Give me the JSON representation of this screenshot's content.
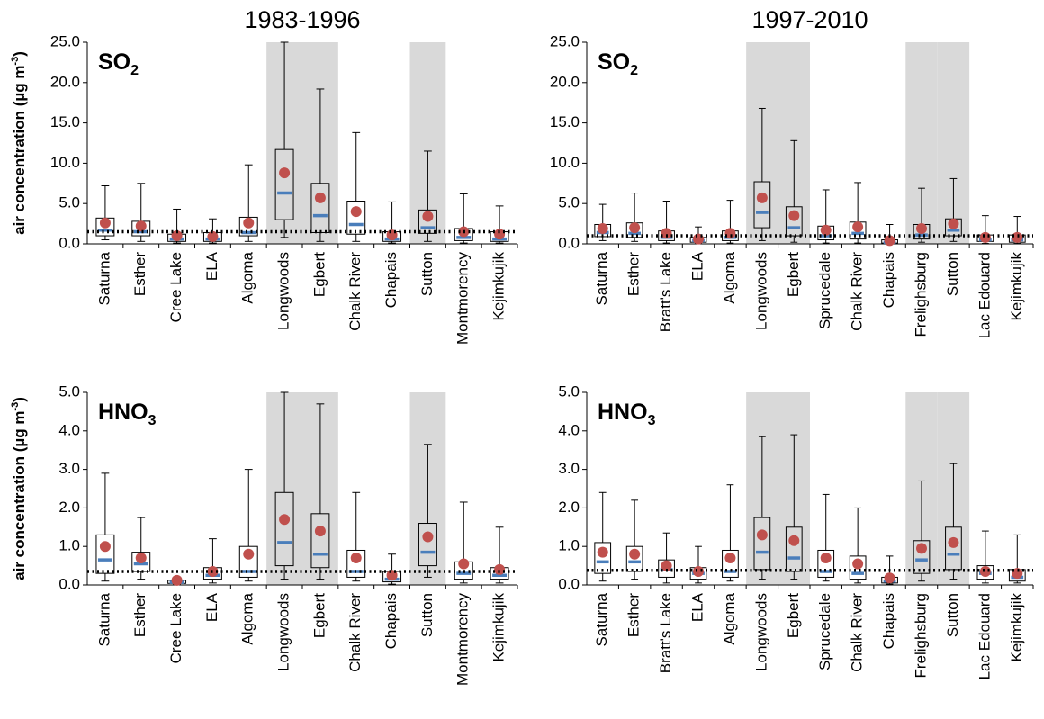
{
  "chart_data": [
    {
      "type": "box",
      "title": "1983-1996",
      "label": "SO",
      "label_sub": "2",
      "ylabel": [
        "air concentration (µg m",
        "-3",
        ")"
      ],
      "categories": [
        "Saturna",
        "Esther",
        "Cree Lake",
        "ELA",
        "Algoma",
        "Longwoods",
        "Egbert",
        "Chalk River",
        "Chapais",
        "Sutton",
        "Montmorency",
        "Kejimkujik"
      ],
      "whisker_low": [
        0.5,
        0.3,
        0.1,
        0.1,
        0.3,
        0.8,
        0.3,
        0.3,
        0.1,
        0.3,
        0.1,
        0.1
      ],
      "q1": [
        1.0,
        1.0,
        0.3,
        0.3,
        1.0,
        3.0,
        1.4,
        1.2,
        0.3,
        1.3,
        0.4,
        0.3
      ],
      "median": [
        1.7,
        1.5,
        0.6,
        0.6,
        1.4,
        6.3,
        3.5,
        2.4,
        0.6,
        2.0,
        0.8,
        0.6
      ],
      "q3": [
        3.2,
        2.8,
        1.2,
        1.4,
        3.3,
        11.7,
        7.5,
        5.3,
        1.5,
        4.2,
        1.9,
        1.5
      ],
      "whisker_high": [
        7.2,
        7.5,
        4.3,
        3.1,
        9.8,
        25.0,
        19.2,
        13.8,
        5.2,
        11.5,
        6.2,
        4.7
      ],
      "mean": [
        2.6,
        2.2,
        1.0,
        0.9,
        2.6,
        8.8,
        5.7,
        4.0,
        1.1,
        3.4,
        1.5,
        1.2
      ],
      "shaded": [
        false,
        false,
        false,
        false,
        false,
        true,
        true,
        false,
        false,
        true,
        false,
        false
      ],
      "reference": 1.5,
      "ylim": [
        0,
        25
      ],
      "yticks": [
        {
          "value": 0,
          "label": "0.0"
        },
        {
          "value": 5,
          "label": "5.0"
        },
        {
          "value": 10,
          "label": "10.0"
        },
        {
          "value": 15,
          "label": "15.0"
        },
        {
          "value": 20,
          "label": "20.0"
        },
        {
          "value": 25,
          "label": "25.0"
        }
      ],
      "box_color": "#000000",
      "median_color": "#4a7ebb",
      "mean_color": "#c0504d",
      "shade_color": "#d9d9d9"
    },
    {
      "type": "box",
      "title": "1997-2010",
      "label": "SO",
      "label_sub": "2",
      "categories": [
        "Saturna",
        "Esther",
        "Bratt's Lake",
        "ELA",
        "Algoma",
        "Longwoods",
        "Egbert",
        "Sprucedale",
        "Chalk River",
        "Chapais",
        "Frelighsburg",
        "Sutton",
        "Lac Edouard",
        "Kejimkujik"
      ],
      "whisker_low": [
        0.4,
        0.3,
        0.1,
        0.05,
        0.1,
        0.4,
        0.2,
        0.1,
        0.1,
        0.05,
        0.2,
        0.3,
        0.05,
        0.05
      ],
      "q1": [
        0.9,
        0.8,
        0.4,
        0.2,
        0.4,
        2.0,
        1.0,
        0.5,
        0.6,
        0.1,
        0.6,
        1.0,
        0.3,
        0.2
      ],
      "median": [
        1.4,
        1.3,
        0.8,
        0.4,
        0.8,
        3.9,
        2.0,
        1.0,
        1.3,
        0.2,
        1.1,
        1.7,
        0.5,
        0.5
      ],
      "q3": [
        2.4,
        2.6,
        1.6,
        0.8,
        1.6,
        7.7,
        4.6,
        2.2,
        2.7,
        0.5,
        2.4,
        3.1,
        1.1,
        1.1
      ],
      "whisker_high": [
        4.9,
        6.3,
        5.3,
        2.1,
        5.4,
        16.8,
        12.8,
        6.7,
        7.6,
        2.4,
        6.9,
        8.1,
        3.5,
        3.4
      ],
      "mean": [
        1.9,
        2.0,
        1.3,
        0.6,
        1.3,
        5.7,
        3.5,
        1.7,
        2.1,
        0.4,
        1.9,
        2.5,
        0.8,
        0.8
      ],
      "shaded": [
        false,
        false,
        false,
        false,
        false,
        true,
        true,
        false,
        false,
        false,
        true,
        true,
        false,
        false
      ],
      "reference": 1.0,
      "ylim": [
        0,
        25
      ],
      "yticks": [
        {
          "value": 0,
          "label": "0.0"
        },
        {
          "value": 5,
          "label": "5.0"
        },
        {
          "value": 10,
          "label": "10.0"
        },
        {
          "value": 15,
          "label": "15.0"
        },
        {
          "value": 20,
          "label": "20.0"
        },
        {
          "value": 25,
          "label": "25.0"
        }
      ],
      "box_color": "#000000",
      "median_color": "#4a7ebb",
      "mean_color": "#c0504d",
      "shade_color": "#d9d9d9"
    },
    {
      "type": "box",
      "label": "HNO",
      "label_sub": "3",
      "ylabel": [
        "air concentration (µg m",
        "-3",
        ")"
      ],
      "categories": [
        "Saturna",
        "Esther",
        "Cree Lake",
        "ELA",
        "Algoma",
        "Longwoods",
        "Egbert",
        "Chalk River",
        "Chapais",
        "Sutton",
        "Montmorency",
        "Kejimkujik"
      ],
      "whisker_low": [
        0.1,
        0.15,
        0.02,
        0.05,
        0.1,
        0.15,
        0.15,
        0.1,
        0.02,
        0.2,
        0.05,
        0.05
      ],
      "q1": [
        0.3,
        0.35,
        0.04,
        0.15,
        0.2,
        0.5,
        0.45,
        0.2,
        0.08,
        0.5,
        0.15,
        0.15
      ],
      "median": [
        0.65,
        0.55,
        0.07,
        0.25,
        0.35,
        1.1,
        0.8,
        0.35,
        0.15,
        0.85,
        0.3,
        0.25
      ],
      "q3": [
        1.3,
        0.85,
        0.12,
        0.45,
        1.0,
        2.4,
        1.85,
        0.9,
        0.35,
        1.6,
        0.6,
        0.45
      ],
      "whisker_high": [
        2.9,
        1.75,
        0.17,
        1.2,
        3.0,
        5.0,
        4.7,
        2.4,
        0.8,
        3.65,
        2.15,
        1.5
      ],
      "mean": [
        1.0,
        0.7,
        0.12,
        0.35,
        0.8,
        1.7,
        1.4,
        0.7,
        0.25,
        1.25,
        0.55,
        0.4
      ],
      "shaded": [
        false,
        false,
        false,
        false,
        false,
        true,
        true,
        false,
        false,
        true,
        false,
        false
      ],
      "reference": 0.35,
      "ylim": [
        0,
        5
      ],
      "yticks": [
        {
          "value": 0,
          "label": "0.0"
        },
        {
          "value": 1,
          "label": "1.0"
        },
        {
          "value": 2,
          "label": "2.0"
        },
        {
          "value": 3,
          "label": "3.0"
        },
        {
          "value": 4,
          "label": "4.0"
        },
        {
          "value": 5,
          "label": "5.0"
        }
      ],
      "box_color": "#000000",
      "median_color": "#4a7ebb",
      "mean_color": "#c0504d",
      "shade_color": "#d9d9d9"
    },
    {
      "type": "box",
      "label": "HNO",
      "label_sub": "3",
      "categories": [
        "Saturna",
        "Esther",
        "Bratt's Lake",
        "ELA",
        "Algoma",
        "Longwoods",
        "Egbert",
        "Sprucedale",
        "Chalk River",
        "Chapais",
        "Frelighsburg",
        "Sutton",
        "Lac Edouard",
        "Kejimkujik"
      ],
      "whisker_low": [
        0.1,
        0.15,
        0.05,
        0.05,
        0.1,
        0.15,
        0.15,
        0.1,
        0.05,
        0.02,
        0.1,
        0.15,
        0.05,
        0.05
      ],
      "q1": [
        0.3,
        0.35,
        0.2,
        0.15,
        0.2,
        0.4,
        0.35,
        0.2,
        0.15,
        0.05,
        0.3,
        0.4,
        0.15,
        0.1
      ],
      "median": [
        0.6,
        0.6,
        0.4,
        0.3,
        0.35,
        0.85,
        0.7,
        0.35,
        0.3,
        0.1,
        0.65,
        0.8,
        0.3,
        0.2
      ],
      "q3": [
        1.1,
        1.0,
        0.65,
        0.45,
        0.9,
        1.75,
        1.5,
        0.9,
        0.75,
        0.2,
        1.15,
        1.5,
        0.5,
        0.4
      ],
      "whisker_high": [
        2.4,
        2.2,
        1.35,
        1.0,
        2.6,
        3.85,
        3.9,
        2.35,
        2.0,
        0.75,
        2.7,
        3.15,
        1.4,
        1.3
      ],
      "mean": [
        0.85,
        0.8,
        0.5,
        0.35,
        0.7,
        1.3,
        1.15,
        0.7,
        0.55,
        0.18,
        0.95,
        1.1,
        0.35,
        0.3
      ],
      "shaded": [
        false,
        false,
        false,
        false,
        false,
        true,
        true,
        false,
        false,
        false,
        true,
        true,
        false,
        false
      ],
      "reference": 0.38,
      "ylim": [
        0,
        5
      ],
      "yticks": [
        {
          "value": 0,
          "label": "0.0"
        },
        {
          "value": 1,
          "label": "1.0"
        },
        {
          "value": 2,
          "label": "2.0"
        },
        {
          "value": 3,
          "label": "3.0"
        },
        {
          "value": 4,
          "label": "4.0"
        },
        {
          "value": 5,
          "label": "5.0"
        }
      ],
      "box_color": "#000000",
      "median_color": "#4a7ebb",
      "mean_color": "#c0504d",
      "shade_color": "#d9d9d9"
    }
  ]
}
